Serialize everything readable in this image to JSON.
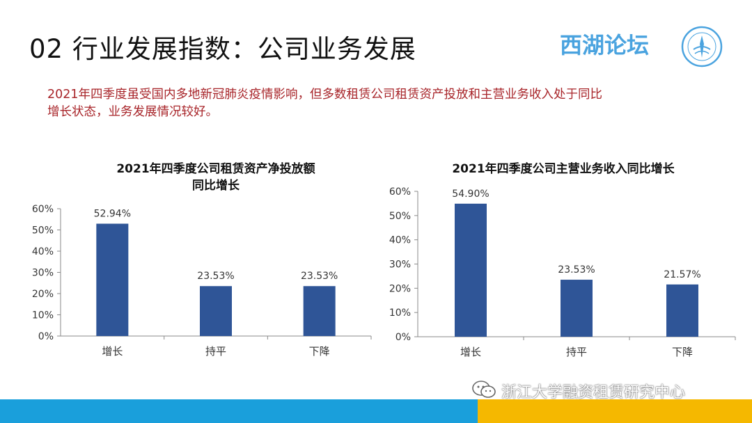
{
  "slide": {
    "title": "02 行业发展指数：公司业务发展",
    "logo_text": "西湖论坛",
    "intro_line1": "2021年四季度虽受国内多地新冠肺炎疫情影响，但多数租赁公司租赁资产投放和主营业务收入处于同比",
    "intro_line2": "增长状态，业务发展情况较好。",
    "watermark": "浙江大学融资租赁研究中心"
  },
  "colors": {
    "bar": "#2f5597",
    "title": "#111111",
    "intro": "#a8252a",
    "logo": "#4aa3df",
    "band_blue": "#1a9fdb",
    "band_yellow": "#f5b800"
  },
  "icons": {
    "logo_seal": "forum-seal-icon",
    "watermark": "wechat-icon"
  },
  "chart_data": [
    {
      "type": "bar",
      "title_line1": "2021年四季度公司租赁资产净投放额",
      "title_line2": "同比增长",
      "categories": [
        "增长",
        "持平",
        "下降"
      ],
      "values": [
        52.94,
        23.53,
        23.53
      ],
      "value_labels": [
        "52.94%",
        "23.53%",
        "23.53%"
      ],
      "yticks": [
        "0%",
        "10%",
        "20%",
        "30%",
        "40%",
        "50%",
        "60%"
      ],
      "ylim": [
        0,
        60
      ],
      "grid": false,
      "legend": false
    },
    {
      "type": "bar",
      "title_line1": "2021年四季度公司主营业务收入同比增长",
      "title_line2": "",
      "categories": [
        "增长",
        "持平",
        "下降"
      ],
      "values": [
        54.9,
        23.53,
        21.57
      ],
      "value_labels": [
        "54.90%",
        "23.53%",
        "21.57%"
      ],
      "yticks": [
        "0%",
        "10%",
        "20%",
        "30%",
        "40%",
        "50%",
        "60%"
      ],
      "ylim": [
        0,
        60
      ],
      "grid": false,
      "legend": false
    }
  ]
}
